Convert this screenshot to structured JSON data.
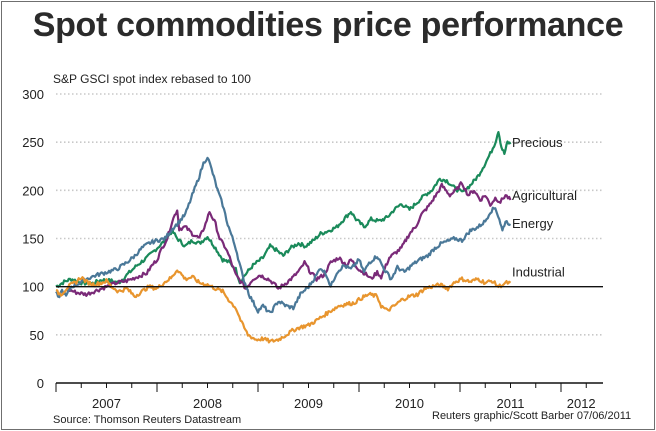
{
  "chart_data": {
    "type": "line",
    "title": "Spot commodities price performance",
    "subtitle": "S&P GSCI spot index rebased to 100",
    "xlabel": "",
    "ylabel": "",
    "ylim": [
      0,
      300
    ],
    "xlim": [
      2007.0,
      2012.45
    ],
    "yticks": [
      0,
      50,
      100,
      150,
      200,
      250,
      300
    ],
    "ytick_labels": [
      "0",
      "50",
      "100",
      "150",
      "200",
      "250",
      "300"
    ],
    "xtick_labels": [
      {
        "label": "2007",
        "pos": 2007.5
      },
      {
        "label": "2008",
        "pos": 2008.5
      },
      {
        "label": "2009",
        "pos": 2009.5
      },
      {
        "label": "2010",
        "pos": 2010.5
      },
      {
        "label": "2011",
        "pos": 2011.5
      },
      {
        "label": "2012",
        "pos": 2012.2
      }
    ],
    "grid": "horizontal-dotted",
    "reference_line": 100,
    "legend": "inline-right",
    "series": [
      {
        "name": "Precious",
        "color": "#1a8a5a",
        "points": [
          [
            2007.0,
            100
          ],
          [
            2007.08,
            105
          ],
          [
            2007.15,
            108
          ],
          [
            2007.25,
            104
          ],
          [
            2007.35,
            103
          ],
          [
            2007.45,
            107
          ],
          [
            2007.55,
            106
          ],
          [
            2007.62,
            104
          ],
          [
            2007.7,
            112
          ],
          [
            2007.8,
            122
          ],
          [
            2007.9,
            130
          ],
          [
            2008.0,
            140
          ],
          [
            2008.08,
            148
          ],
          [
            2008.15,
            158
          ],
          [
            2008.2,
            150
          ],
          [
            2008.28,
            142
          ],
          [
            2008.35,
            148
          ],
          [
            2008.42,
            145
          ],
          [
            2008.5,
            152
          ],
          [
            2008.58,
            140
          ],
          [
            2008.65,
            128
          ],
          [
            2008.72,
            125
          ],
          [
            2008.78,
            118
          ],
          [
            2008.82,
            105
          ],
          [
            2008.87,
            112
          ],
          [
            2008.95,
            122
          ],
          [
            2009.05,
            130
          ],
          [
            2009.12,
            142
          ],
          [
            2009.18,
            138
          ],
          [
            2009.25,
            132
          ],
          [
            2009.32,
            140
          ],
          [
            2009.4,
            145
          ],
          [
            2009.47,
            142
          ],
          [
            2009.55,
            148
          ],
          [
            2009.62,
            155
          ],
          [
            2009.7,
            158
          ],
          [
            2009.78,
            162
          ],
          [
            2009.85,
            170
          ],
          [
            2009.92,
            178
          ],
          [
            2009.97,
            170
          ],
          [
            2010.05,
            162
          ],
          [
            2010.12,
            170
          ],
          [
            2010.2,
            168
          ],
          [
            2010.28,
            172
          ],
          [
            2010.35,
            180
          ],
          [
            2010.42,
            186
          ],
          [
            2010.5,
            180
          ],
          [
            2010.58,
            188
          ],
          [
            2010.65,
            195
          ],
          [
            2010.72,
            200
          ],
          [
            2010.8,
            212
          ],
          [
            2010.87,
            210
          ],
          [
            2010.95,
            202
          ],
          [
            2011.02,
            198
          ],
          [
            2011.1,
            205
          ],
          [
            2011.18,
            215
          ],
          [
            2011.25,
            228
          ],
          [
            2011.3,
            238
          ],
          [
            2011.35,
            250
          ],
          [
            2011.38,
            262
          ],
          [
            2011.41,
            245
          ],
          [
            2011.44,
            238
          ],
          [
            2011.47,
            250
          ],
          [
            2011.5,
            248
          ]
        ]
      },
      {
        "name": "Agricultural",
        "color": "#7a2a78",
        "points": [
          [
            2007.1,
            98
          ],
          [
            2007.2,
            94
          ],
          [
            2007.3,
            92
          ],
          [
            2007.4,
            96
          ],
          [
            2007.5,
            100
          ],
          [
            2007.6,
            104
          ],
          [
            2007.7,
            106
          ],
          [
            2007.8,
            110
          ],
          [
            2007.9,
            114
          ],
          [
            2007.95,
            122
          ],
          [
            2008.0,
            128
          ],
          [
            2008.05,
            140
          ],
          [
            2008.1,
            150
          ],
          [
            2008.15,
            168
          ],
          [
            2008.2,
            180
          ],
          [
            2008.22,
            160
          ],
          [
            2008.28,
            162
          ],
          [
            2008.35,
            155
          ],
          [
            2008.42,
            150
          ],
          [
            2008.48,
            165
          ],
          [
            2008.52,
            178
          ],
          [
            2008.58,
            165
          ],
          [
            2008.62,
            150
          ],
          [
            2008.68,
            140
          ],
          [
            2008.72,
            130
          ],
          [
            2008.78,
            112
          ],
          [
            2008.84,
            104
          ],
          [
            2008.88,
            98
          ],
          [
            2008.95,
            108
          ],
          [
            2009.02,
            112
          ],
          [
            2009.1,
            108
          ],
          [
            2009.15,
            104
          ],
          [
            2009.2,
            98
          ],
          [
            2009.28,
            104
          ],
          [
            2009.35,
            110
          ],
          [
            2009.42,
            118
          ],
          [
            2009.46,
            125
          ],
          [
            2009.52,
            115
          ],
          [
            2009.58,
            108
          ],
          [
            2009.65,
            112
          ],
          [
            2009.72,
            125
          ],
          [
            2009.8,
            130
          ],
          [
            2009.88,
            122
          ],
          [
            2009.92,
            128
          ],
          [
            2010.0,
            118
          ],
          [
            2010.08,
            112
          ],
          [
            2010.12,
            108
          ],
          [
            2010.18,
            115
          ],
          [
            2010.22,
            110
          ],
          [
            2010.3,
            130
          ],
          [
            2010.36,
            135
          ],
          [
            2010.42,
            140
          ],
          [
            2010.5,
            155
          ],
          [
            2010.56,
            162
          ],
          [
            2010.62,
            175
          ],
          [
            2010.7,
            185
          ],
          [
            2010.78,
            198
          ],
          [
            2010.82,
            205
          ],
          [
            2010.9,
            195
          ],
          [
            2010.96,
            200
          ],
          [
            2011.02,
            208
          ],
          [
            2011.08,
            195
          ],
          [
            2011.14,
            200
          ],
          [
            2011.2,
            190
          ],
          [
            2011.25,
            195
          ],
          [
            2011.3,
            185
          ],
          [
            2011.35,
            192
          ],
          [
            2011.4,
            188
          ],
          [
            2011.45,
            195
          ],
          [
            2011.5,
            190
          ]
        ]
      },
      {
        "name": "Energy",
        "color": "#4a7898",
        "points": [
          [
            2007.0,
            95
          ],
          [
            2007.02,
            88
          ],
          [
            2007.06,
            96
          ],
          [
            2007.1,
            90
          ],
          [
            2007.15,
            100
          ],
          [
            2007.2,
            102
          ],
          [
            2007.3,
            108
          ],
          [
            2007.4,
            112
          ],
          [
            2007.5,
            115
          ],
          [
            2007.6,
            118
          ],
          [
            2007.7,
            125
          ],
          [
            2007.78,
            132
          ],
          [
            2007.85,
            140
          ],
          [
            2007.92,
            145
          ],
          [
            2008.0,
            148
          ],
          [
            2008.08,
            150
          ],
          [
            2008.15,
            160
          ],
          [
            2008.2,
            165
          ],
          [
            2008.28,
            175
          ],
          [
            2008.35,
            195
          ],
          [
            2008.42,
            215
          ],
          [
            2008.46,
            228
          ],
          [
            2008.5,
            235
          ],
          [
            2008.54,
            222
          ],
          [
            2008.6,
            200
          ],
          [
            2008.65,
            185
          ],
          [
            2008.7,
            165
          ],
          [
            2008.78,
            140
          ],
          [
            2008.85,
            110
          ],
          [
            2008.92,
            90
          ],
          [
            2009.0,
            75
          ],
          [
            2009.05,
            80
          ],
          [
            2009.12,
            72
          ],
          [
            2009.2,
            85
          ],
          [
            2009.28,
            80
          ],
          [
            2009.35,
            78
          ],
          [
            2009.42,
            92
          ],
          [
            2009.5,
            100
          ],
          [
            2009.58,
            112
          ],
          [
            2009.62,
            120
          ],
          [
            2009.68,
            112
          ],
          [
            2009.72,
            100
          ],
          [
            2009.78,
            115
          ],
          [
            2009.85,
            122
          ],
          [
            2009.92,
            118
          ],
          [
            2010.0,
            128
          ],
          [
            2010.05,
            115
          ],
          [
            2010.1,
            125
          ],
          [
            2010.18,
            132
          ],
          [
            2010.25,
            118
          ],
          [
            2010.32,
            108
          ],
          [
            2010.38,
            120
          ],
          [
            2010.45,
            115
          ],
          [
            2010.52,
            122
          ],
          [
            2010.6,
            128
          ],
          [
            2010.68,
            132
          ],
          [
            2010.75,
            140
          ],
          [
            2010.82,
            145
          ],
          [
            2010.9,
            148
          ],
          [
            2010.95,
            150
          ],
          [
            2011.02,
            148
          ],
          [
            2011.1,
            158
          ],
          [
            2011.18,
            162
          ],
          [
            2011.25,
            168
          ],
          [
            2011.3,
            178
          ],
          [
            2011.35,
            182
          ],
          [
            2011.39,
            170
          ],
          [
            2011.42,
            158
          ],
          [
            2011.45,
            168
          ],
          [
            2011.5,
            165
          ]
        ]
      },
      {
        "name": "Industrial",
        "color": "#e8952e",
        "points": [
          [
            2007.0,
            95
          ],
          [
            2007.05,
            92
          ],
          [
            2007.12,
            100
          ],
          [
            2007.2,
            105
          ],
          [
            2007.25,
            110
          ],
          [
            2007.3,
            105
          ],
          [
            2007.38,
            102
          ],
          [
            2007.45,
            104
          ],
          [
            2007.5,
            106
          ],
          [
            2007.55,
            100
          ],
          [
            2007.62,
            95
          ],
          [
            2007.7,
            98
          ],
          [
            2007.78,
            90
          ],
          [
            2007.85,
            95
          ],
          [
            2007.92,
            100
          ],
          [
            2008.0,
            98
          ],
          [
            2008.08,
            105
          ],
          [
            2008.15,
            110
          ],
          [
            2008.2,
            118
          ],
          [
            2008.28,
            108
          ],
          [
            2008.35,
            110
          ],
          [
            2008.42,
            104
          ],
          [
            2008.5,
            102
          ],
          [
            2008.58,
            98
          ],
          [
            2008.65,
            95
          ],
          [
            2008.72,
            85
          ],
          [
            2008.78,
            78
          ],
          [
            2008.84,
            62
          ],
          [
            2008.9,
            50
          ],
          [
            2008.98,
            45
          ],
          [
            2009.05,
            46
          ],
          [
            2009.12,
            43
          ],
          [
            2009.2,
            45
          ],
          [
            2009.28,
            50
          ],
          [
            2009.35,
            55
          ],
          [
            2009.42,
            58
          ],
          [
            2009.5,
            60
          ],
          [
            2009.58,
            65
          ],
          [
            2009.65,
            70
          ],
          [
            2009.72,
            75
          ],
          [
            2009.8,
            80
          ],
          [
            2009.88,
            82
          ],
          [
            2009.95,
            83
          ],
          [
            2010.02,
            88
          ],
          [
            2010.1,
            92
          ],
          [
            2010.18,
            90
          ],
          [
            2010.22,
            80
          ],
          [
            2010.28,
            75
          ],
          [
            2010.35,
            80
          ],
          [
            2010.42,
            86
          ],
          [
            2010.5,
            90
          ],
          [
            2010.58,
            92
          ],
          [
            2010.65,
            98
          ],
          [
            2010.72,
            100
          ],
          [
            2010.8,
            102
          ],
          [
            2010.88,
            98
          ],
          [
            2010.95,
            105
          ],
          [
            2011.02,
            108
          ],
          [
            2011.1,
            105
          ],
          [
            2011.18,
            108
          ],
          [
            2011.25,
            104
          ],
          [
            2011.32,
            106
          ],
          [
            2011.38,
            100
          ],
          [
            2011.42,
            102
          ],
          [
            2011.46,
            104
          ],
          [
            2011.5,
            104
          ]
        ]
      }
    ],
    "legend_entries": [
      {
        "name": "Precious",
        "at_value": 250
      },
      {
        "name": "Agricultural",
        "at_value": 195
      },
      {
        "name": "Energy",
        "at_value": 166
      },
      {
        "name": "Industrial",
        "at_value": 116
      }
    ]
  },
  "footer": {
    "source": "Source: Thomson Reuters Datastream",
    "credit": "Reuters graphic/Scott Barber 07/06/2011"
  }
}
